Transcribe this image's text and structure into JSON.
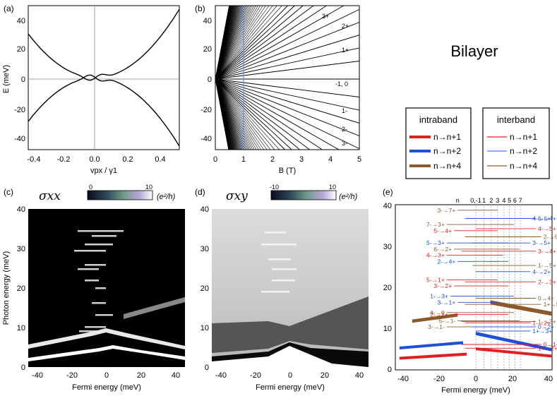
{
  "figure_title": "Bilayer",
  "legend": {
    "intraband": {
      "title": "intraband",
      "items": [
        {
          "label": "n→n+1",
          "color": "#e02020"
        },
        {
          "label": "n→n+2",
          "color": "#1e4fd8"
        },
        {
          "label": "n→n+4",
          "color": "#8a5a2b"
        }
      ]
    },
    "interband": {
      "title": "interband",
      "items": [
        {
          "label": "n→n+1",
          "color": "#e02020"
        },
        {
          "label": "n→n+2",
          "color": "#4a7cf0"
        },
        {
          "label": "n→n+4",
          "color": "#8a5a2b"
        }
      ]
    }
  },
  "chart_data": [
    {
      "panel": "(a)",
      "type": "line",
      "xlabel": "vpx / γ1",
      "ylabel": "E (meV)",
      "xlim": [
        -0.4,
        0.5
      ],
      "ylim": [
        -50,
        50
      ],
      "xticks": [
        "-0.4",
        "-0.2",
        "0.0",
        "0.2",
        "0.4"
      ],
      "yticks": [
        "40",
        "20",
        "0",
        "-20",
        "-40"
      ]
    },
    {
      "panel": "(b)",
      "type": "line",
      "xlabel": "B (T)",
      "xlim": [
        0,
        5
      ],
      "ylim": [
        -50,
        50
      ],
      "xticks": [
        "0",
        "1",
        "2",
        "3",
        "4",
        "5"
      ],
      "yticks": [
        "40",
        "20",
        "0",
        "-20",
        "-40"
      ],
      "marker_B": 1,
      "level_labels": [
        "3+",
        "2+",
        "1+",
        "-1, 0",
        "1-",
        "2-",
        "3-"
      ]
    },
    {
      "panel": "(c)",
      "type": "heatmap",
      "title": "σxx",
      "colorbar_ticks": [
        "0",
        "10"
      ],
      "colorbar_unit": "(e²/h)",
      "xlabel": "Fermi energy (meV)",
      "ylabel": "Photon energy (meV)",
      "xlim": [
        -45,
        45
      ],
      "ylim": [
        0,
        40
      ],
      "xticks": [
        "-40",
        "-20",
        "0",
        "20",
        "40"
      ],
      "yticks": [
        "40",
        "30",
        "20",
        "10",
        "0"
      ]
    },
    {
      "panel": "(d)",
      "type": "heatmap",
      "title": "σxy",
      "colorbar_ticks": [
        "-10",
        "10"
      ],
      "colorbar_unit": "(e²/h)",
      "xlabel": "Fermi energy (meV)",
      "xlim": [
        -45,
        45
      ],
      "ylim": [
        0,
        40
      ],
      "xticks": [
        "-40",
        "-20",
        "0",
        "20",
        "40"
      ],
      "yticks": [
        "40",
        "30",
        "20",
        "10",
        "0"
      ]
    },
    {
      "panel": "(e)",
      "type": "bar",
      "xlabel": "Fermi energy (meV)",
      "xlim": [
        -45,
        45
      ],
      "ylim": [
        0,
        40
      ],
      "xticks": [
        "-40",
        "-20",
        "0",
        "20",
        "40"
      ],
      "yticks": [
        "40",
        "30",
        "20",
        "10",
        "0"
      ],
      "top_labels": [
        "n",
        "0,-1",
        "1",
        "2",
        "3",
        "4",
        "5",
        "6",
        "7"
      ],
      "transitions": [
        "3-→7+",
        "6-→4+",
        "4-→6+",
        "7-→3+",
        "4-→5+",
        "5-→4+",
        "2-→6+",
        "5-→3+",
        "3-→5+",
        "6-→2+",
        "3-→4+",
        "4-→3+",
        "2-→4+",
        "1-→5+",
        "4-→2+",
        "5-→1+",
        "2-→3+",
        "3-→2+",
        "1-→3+",
        "0→4+",
        "3-→1+",
        "1+→5+",
        "2-→1+",
        "4-→0",
        "5-→1-",
        "1-→3+",
        "1-→2+",
        "3-→1-",
        "0→2+",
        "1+→3+",
        "0→1+",
        "1+→2+"
      ]
    }
  ]
}
